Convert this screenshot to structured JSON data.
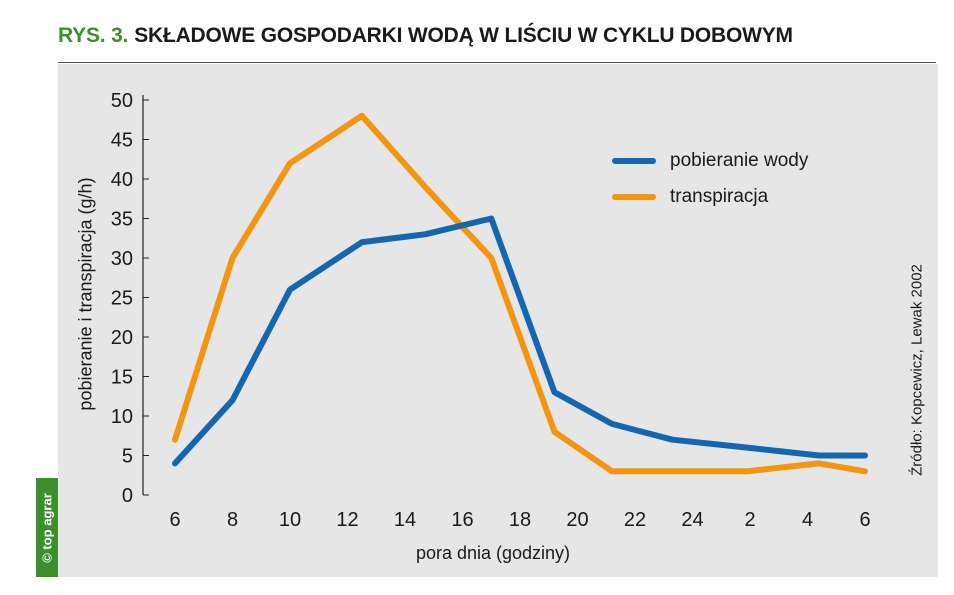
{
  "title_prefix": "RYS. 3.",
  "title": "SKŁADOWE GOSPODARKI WODĄ W LIŚCIU W CYKLU DOBOWYM",
  "source": "Źródło: Kopcewicz, Lewak 2002",
  "badge": "© top agrar",
  "chart_data": {
    "type": "line",
    "xlabel": "pora dnia (godziny)",
    "ylabel": "pobieranie i transpiracja (g/h)",
    "categories": [
      "6",
      "8",
      "10",
      "12",
      "14",
      "16",
      "18",
      "20",
      "22",
      "24",
      "2",
      "4",
      "6"
    ],
    "yticks": [
      "0",
      "5",
      "10",
      "15",
      "20",
      "25",
      "30",
      "35",
      "40",
      "45",
      "50"
    ],
    "ylim": [
      0,
      50
    ],
    "grid": false,
    "legend_position": "top-right",
    "series": [
      {
        "name": "pobieranie wody",
        "color": "#1566b0",
        "points": [
          [
            6,
            4
          ],
          [
            8,
            12
          ],
          [
            10,
            26
          ],
          [
            12.5,
            32
          ],
          [
            14.7,
            33
          ],
          [
            17,
            35
          ],
          [
            19.2,
            13
          ],
          [
            21.2,
            9
          ],
          [
            23.3,
            7
          ],
          [
            25.9,
            6
          ],
          [
            28.4,
            5
          ],
          [
            30,
            5
          ]
        ]
      },
      {
        "name": "transpiracja",
        "color": "#f39511",
        "points": [
          [
            6,
            7
          ],
          [
            8,
            30
          ],
          [
            10,
            42
          ],
          [
            12.5,
            48
          ],
          [
            14.7,
            39
          ],
          [
            17,
            30
          ],
          [
            19.2,
            8
          ],
          [
            21.2,
            3
          ],
          [
            23.3,
            3
          ],
          [
            25.9,
            3
          ],
          [
            28.4,
            4
          ],
          [
            30,
            3
          ]
        ]
      }
    ]
  }
}
